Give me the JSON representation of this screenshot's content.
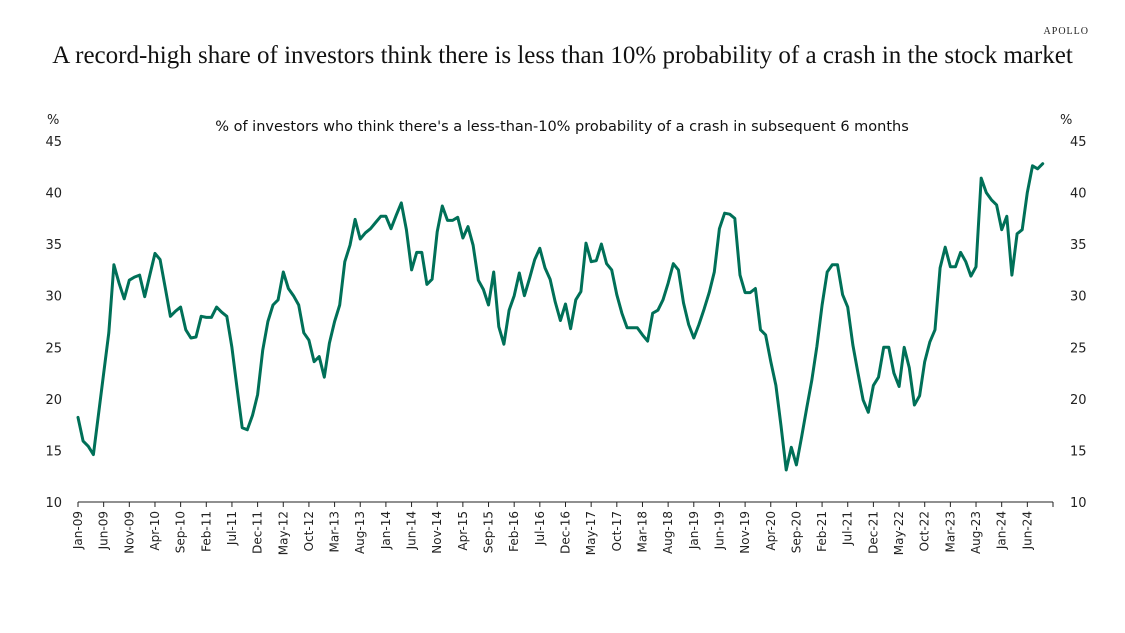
{
  "brand": "APOLLO",
  "title": "A record-high share of investors think there is less than 10% probability of a crash in the stock market",
  "chart_data": {
    "type": "line",
    "title": "% of investors who think there's a less-than-10% probability of a crash in subsequent 6 months",
    "ylabel_left": "%",
    "ylabel_right": "%",
    "xlabel": "",
    "ylim": [
      10,
      45
    ],
    "yticks": [
      10,
      15,
      20,
      25,
      30,
      35,
      40,
      45
    ],
    "grid": false,
    "legend": "none",
    "line_color": "#007058",
    "x_start": "Jan-09",
    "x_end": "Nov-24",
    "frequency": "monthly",
    "xtick_labels": [
      "Jan-09",
      "Jun-09",
      "Nov-09",
      "Apr-10",
      "Sep-10",
      "Feb-11",
      "Jul-11",
      "Dec-11",
      "May-12",
      "Oct-12",
      "Mar-13",
      "Aug-13",
      "Jan-14",
      "Jun-14",
      "Nov-14",
      "Apr-15",
      "Sep-15",
      "Feb-16",
      "Jul-16",
      "Dec-16",
      "May-17",
      "Oct-17",
      "Mar-18",
      "Aug-18",
      "Jan-19",
      "Jun-19",
      "Nov-19",
      "Apr-20",
      "Sep-20",
      "Feb-21",
      "Jul-21",
      "Dec-21",
      "May-22",
      "Oct-22",
      "Mar-23",
      "Aug-23",
      "Jan-24",
      "Jun-24"
    ],
    "series": [
      {
        "name": "% of investors who think there's a less-than-10% probability of a crash in subsequent 6 months",
        "values": [
          18.2,
          15.9,
          15.4,
          14.6,
          18.5,
          22.5,
          26.4,
          33.0,
          31.2,
          29.7,
          31.5,
          31.8,
          32.0,
          29.9,
          32.0,
          34.1,
          33.5,
          30.8,
          28.0,
          28.5,
          28.9,
          26.7,
          25.9,
          26.0,
          28.0,
          27.9,
          27.9,
          28.9,
          28.4,
          28.0,
          25.0,
          21.0,
          17.2,
          17.0,
          18.4,
          20.4,
          24.7,
          27.5,
          29.1,
          29.6,
          32.3,
          30.7,
          30.0,
          29.1,
          26.4,
          25.7,
          23.6,
          24.1,
          22.1,
          25.4,
          27.5,
          29.1,
          33.3,
          34.9,
          37.4,
          35.5,
          36.1,
          36.5,
          37.1,
          37.7,
          37.7,
          36.5,
          37.8,
          39.0,
          36.4,
          32.5,
          34.2,
          34.2,
          31.1,
          31.6,
          36.2,
          38.7,
          37.3,
          37.3,
          37.6,
          35.6,
          36.7,
          34.9,
          31.5,
          30.6,
          29.1,
          32.3,
          27.0,
          25.3,
          28.6,
          30.0,
          32.2,
          30.0,
          31.7,
          33.5,
          34.6,
          32.7,
          31.6,
          29.4,
          27.6,
          29.2,
          26.8,
          29.6,
          30.4,
          35.1,
          33.3,
          33.4,
          35.0,
          33.1,
          32.5,
          30.1,
          28.3,
          26.9,
          26.9,
          26.9,
          26.2,
          25.6,
          28.3,
          28.6,
          29.6,
          31.2,
          33.1,
          32.5,
          29.3,
          27.2,
          25.9,
          27.2,
          28.7,
          30.3,
          32.3,
          36.5,
          38.0,
          37.9,
          37.5,
          32.0,
          30.3,
          30.3,
          30.7,
          26.7,
          26.2,
          23.6,
          21.3,
          17.4,
          13.1,
          15.3,
          13.6,
          16.3,
          19.1,
          21.8,
          25.1,
          29.1,
          32.3,
          33.0,
          33.0,
          30.1,
          28.9,
          25.2,
          22.5,
          19.9,
          18.7,
          21.3,
          22.1,
          25.0,
          25.0,
          22.5,
          21.2,
          25.0,
          23.0,
          19.4,
          20.3,
          23.6,
          25.5,
          26.7,
          32.7,
          34.7,
          32.8,
          32.8,
          34.2,
          33.3,
          31.9,
          32.8,
          41.4,
          40.0,
          39.3,
          38.8,
          36.4,
          37.7,
          32.0,
          36.0,
          36.4,
          40.0,
          42.6,
          42.3,
          42.8
        ]
      }
    ]
  }
}
